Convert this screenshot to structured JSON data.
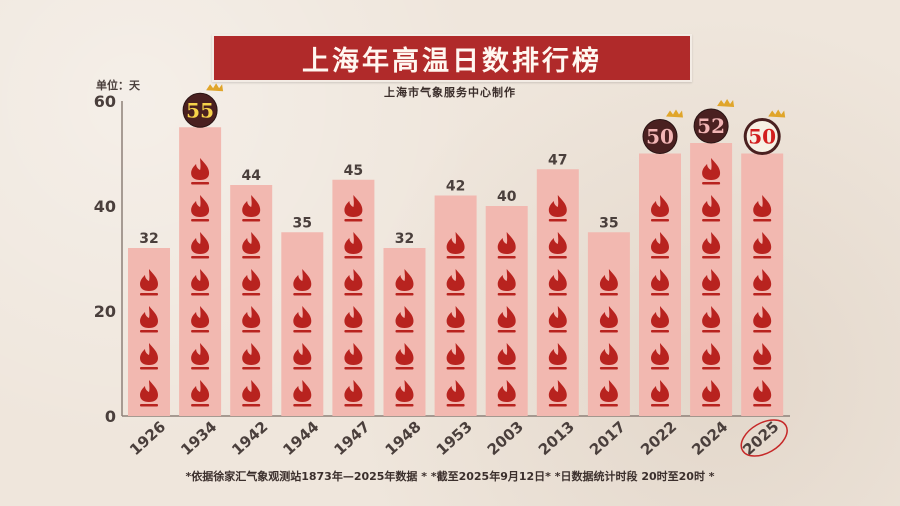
{
  "title": "上海年高温日数排行榜",
  "subtitle": "上海市气象服务中心制作",
  "footnote": "*依据徐家汇气象观测站1873年—2025年数据 * *截至2025年9月12日* *日数据统计时段 20时至20时 *",
  "colors": {
    "banner": "#b02a2a",
    "bar": "#f2b8b0",
    "flame": "#b8231f",
    "badge_dark": "#4a2020",
    "badge_text_gold": "#f7d34a",
    "badge_text_pink": "#f2b4b4",
    "badge_text_red": "#d21e1e",
    "axis_text": "#4a3f3c",
    "highlight_circle": "#c62828"
  },
  "chart_data": {
    "type": "bar",
    "unit_label": "单位：天",
    "categories": [
      "1926",
      "1934",
      "1942",
      "1944",
      "1947",
      "1948",
      "1953",
      "2003",
      "2013",
      "2017",
      "2022",
      "2024",
      "2025"
    ],
    "values": [
      32,
      55,
      44,
      35,
      45,
      32,
      42,
      40,
      47,
      35,
      50,
      52,
      50
    ],
    "ylim": [
      0,
      60
    ],
    "yticks": [
      "0",
      "20",
      "40",
      "60"
    ],
    "badge_categories": [
      "1934",
      "2022",
      "2024",
      "2025"
    ],
    "highlight_category": "2025",
    "grid": false,
    "icon": "flame-icon"
  }
}
